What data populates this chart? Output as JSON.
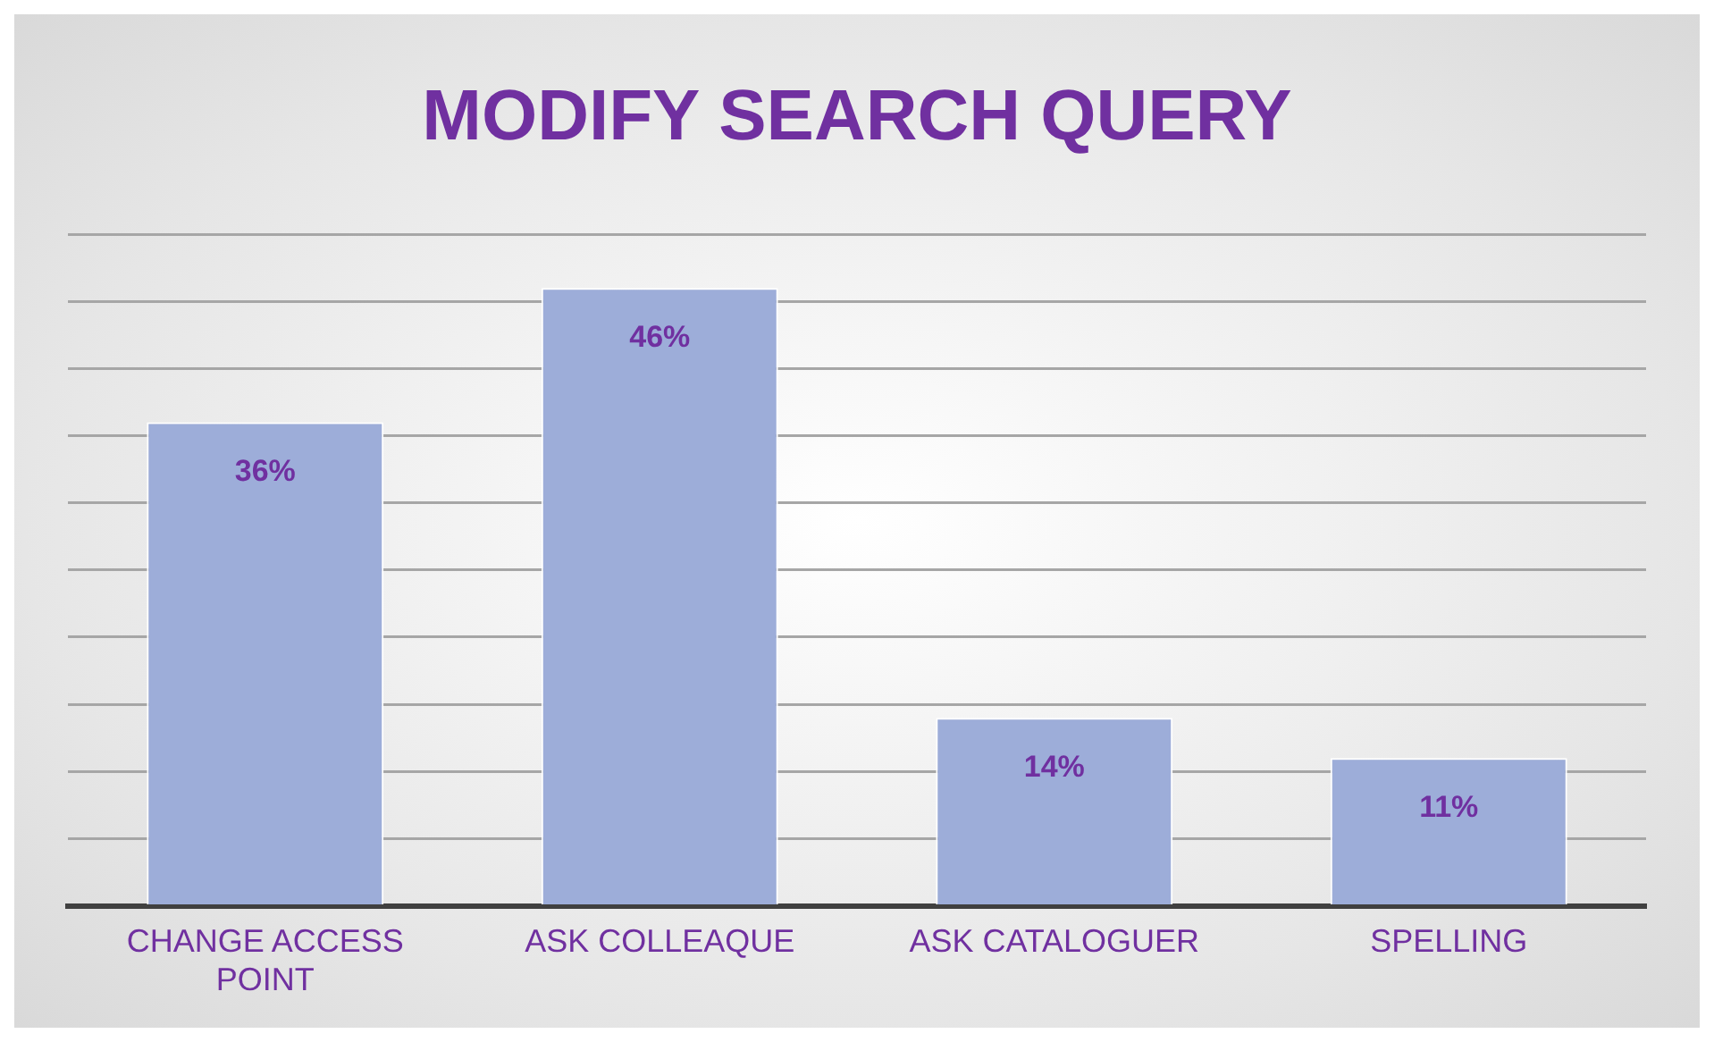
{
  "chart_data": {
    "type": "bar",
    "title": "MODIFY SEARCH QUERY",
    "categories": [
      "CHANGE ACCESS POINT",
      "ASK COLLEAQUE",
      "ASK CATALOGUER",
      "SPELLING"
    ],
    "values": [
      36,
      46,
      14,
      11
    ],
    "value_labels": [
      "36%",
      "46%",
      "14%",
      "11%"
    ],
    "color": "#9dadd9",
    "ylim": [
      0,
      50
    ],
    "yticks": [
      {
        "value": 0,
        "label": null
      },
      {
        "value": 5,
        "label": null
      },
      {
        "value": 10,
        "label": null
      },
      {
        "value": 15,
        "label": null
      },
      {
        "value": 20,
        "label": null
      },
      {
        "value": 25,
        "label": null
      },
      {
        "value": 30,
        "label": null
      },
      {
        "value": 35,
        "label": null
      },
      {
        "value": 40,
        "label": null
      },
      {
        "value": 45,
        "label": null
      },
      {
        "value": 50,
        "label": null
      }
    ],
    "tick_labels": "x",
    "grid": "y",
    "legend": false
  }
}
